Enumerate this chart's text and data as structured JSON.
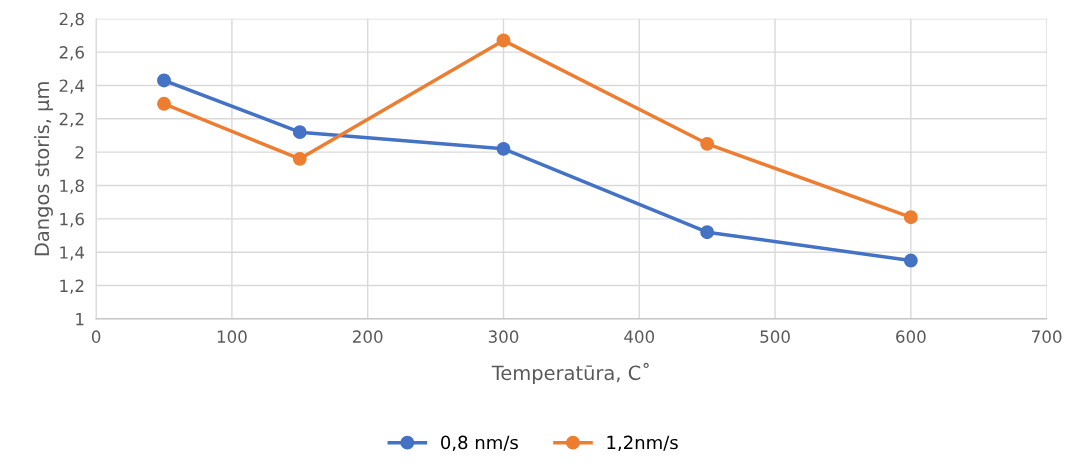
{
  "chart_data": {
    "type": "line",
    "xlabel": "Temperatūra, C˚",
    "ylabel": "Dangos storis, µm",
    "x": [
      50,
      150,
      300,
      450,
      600
    ],
    "series": [
      {
        "name": "0,8 nm/s",
        "color": "#4472c4",
        "values": [
          2.43,
          2.12,
          2.02,
          1.52,
          1.35
        ]
      },
      {
        "name": "1,2nm/s",
        "color": "#ed7d31",
        "values": [
          2.29,
          1.96,
          2.67,
          2.05,
          1.61
        ]
      }
    ],
    "xlim": [
      0,
      700
    ],
    "xticks": [
      0,
      100,
      200,
      300,
      400,
      500,
      600,
      700
    ],
    "ylim": [
      1,
      2.8
    ],
    "yticks": [
      1,
      {
        "value": 1.2,
        "label": "1,2"
      },
      {
        "value": 1.4,
        "label": "1,4"
      },
      {
        "value": 1.6,
        "label": "1,6"
      },
      {
        "value": 1.8,
        "label": "1,8"
      },
      2,
      {
        "value": 2.2,
        "label": "2,2"
      },
      {
        "value": 2.4,
        "label": "2,4"
      },
      {
        "value": 2.6,
        "label": "2,6"
      },
      {
        "value": 2.8,
        "label": "2,8"
      }
    ],
    "grid": true,
    "legend": "bottom",
    "marker": "circle",
    "line_style": "solid"
  }
}
